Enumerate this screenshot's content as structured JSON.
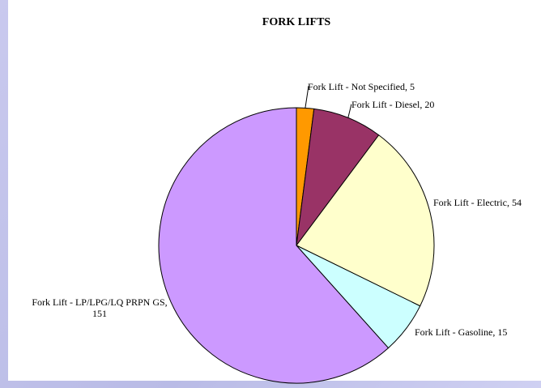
{
  "chart_data": {
    "type": "pie",
    "title": "FORK LIFTS",
    "categories": [
      "Fork Lift - Not Specified",
      "Fork Lift - Diesel",
      "Fork Lift - Electric",
      "Fork Lift - Gasoline",
      "Fork Lift - LP/LPG/LQ PRPN GS"
    ],
    "values": [
      5,
      20,
      54,
      15,
      151
    ],
    "value_labels": [
      "Fork Lift - Not Specified, 5",
      "Fork Lift - Diesel, 20",
      "Fork Lift - Electric, 54",
      "Fork Lift - Gasoline, 15",
      "Fork Lift - LP/LPG/LQ PRPN GS, 151"
    ],
    "colors": [
      "#ff9900",
      "#993366",
      "#ffffcc",
      "#ccffff",
      "#cc99ff"
    ]
  }
}
